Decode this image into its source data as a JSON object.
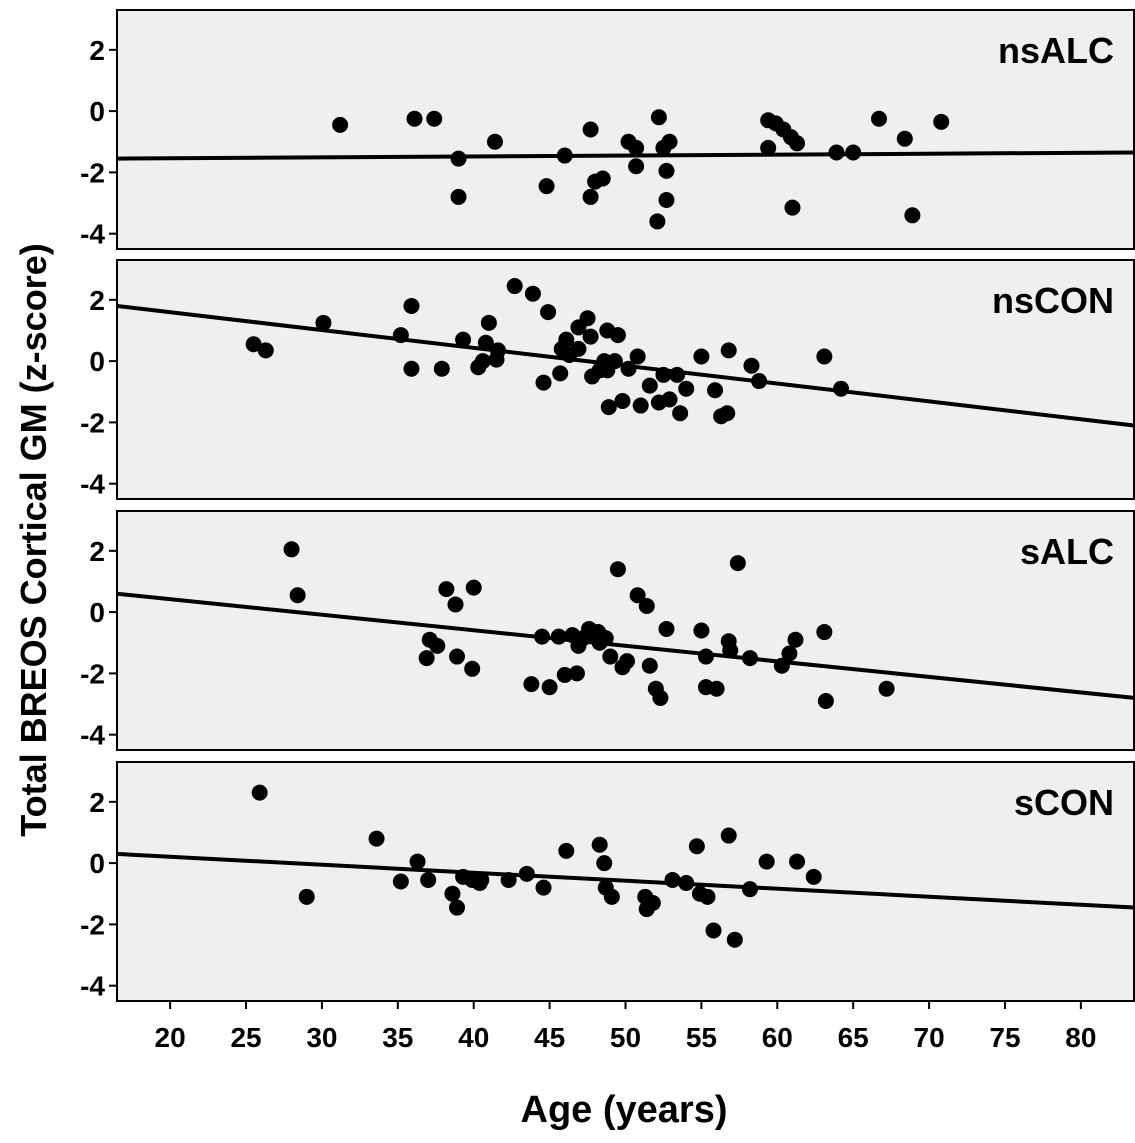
{
  "chart_data": {
    "type": "scatter",
    "xlabel": "Age (years)",
    "ylabel": "Total BREOS Cortical GM (z-score)",
    "xlim": [
      16.5,
      83.5
    ],
    "ylim": [
      -4.5,
      3.3
    ],
    "x_ticks": [
      20,
      25,
      30,
      35,
      40,
      45,
      50,
      55,
      60,
      65,
      70,
      75,
      80
    ],
    "y_ticks": [
      2,
      0,
      -2,
      -4
    ],
    "grid": false,
    "marker_color": "#000000",
    "panel_background": "#efefef",
    "panels": [
      {
        "label": "nsALC",
        "fit_line": [
          [
            16.5,
            -1.55
          ],
          [
            83.5,
            -1.35
          ]
        ],
        "points": [
          [
            31.2,
            -0.45
          ],
          [
            36.1,
            -0.25
          ],
          [
            37.4,
            -0.25
          ],
          [
            39.0,
            -1.55
          ],
          [
            39.0,
            -2.8
          ],
          [
            41.4,
            -1.0
          ],
          [
            44.8,
            -2.45
          ],
          [
            46.0,
            -1.45
          ],
          [
            47.7,
            -0.6
          ],
          [
            47.7,
            -2.8
          ],
          [
            48.0,
            -2.3
          ],
          [
            48.5,
            -2.2
          ],
          [
            50.2,
            -1.0
          ],
          [
            50.7,
            -1.2
          ],
          [
            50.7,
            -1.8
          ],
          [
            52.1,
            -3.6
          ],
          [
            52.2,
            -0.2
          ],
          [
            52.5,
            -1.2
          ],
          [
            52.7,
            -1.95
          ],
          [
            52.7,
            -2.9
          ],
          [
            52.9,
            -1.0
          ],
          [
            59.4,
            -0.3
          ],
          [
            59.4,
            -1.2
          ],
          [
            59.9,
            -0.4
          ],
          [
            60.4,
            -0.6
          ],
          [
            60.9,
            -0.85
          ],
          [
            61.3,
            -1.05
          ],
          [
            61.0,
            -3.15
          ],
          [
            63.9,
            -1.35
          ],
          [
            65.0,
            -1.35
          ],
          [
            66.7,
            -0.25
          ],
          [
            68.4,
            -0.9
          ],
          [
            68.9,
            -3.4
          ],
          [
            70.8,
            -0.35
          ]
        ]
      },
      {
        "label": "nsCON",
        "fit_line": [
          [
            16.5,
            1.8
          ],
          [
            83.5,
            -2.1
          ]
        ],
        "points": [
          [
            25.5,
            0.55
          ],
          [
            26.3,
            0.35
          ],
          [
            30.1,
            1.25
          ],
          [
            35.2,
            0.85
          ],
          [
            35.9,
            1.8
          ],
          [
            35.9,
            -0.25
          ],
          [
            37.9,
            -0.25
          ],
          [
            39.3,
            0.7
          ],
          [
            40.3,
            -0.2
          ],
          [
            40.6,
            0.0
          ],
          [
            40.8,
            0.6
          ],
          [
            41.0,
            1.25
          ],
          [
            41.6,
            0.35
          ],
          [
            41.5,
            0.05
          ],
          [
            42.7,
            2.45
          ],
          [
            43.9,
            2.2
          ],
          [
            44.6,
            -0.7
          ],
          [
            44.9,
            1.6
          ],
          [
            45.8,
            0.4
          ],
          [
            45.7,
            -0.4
          ],
          [
            46.1,
            0.7
          ],
          [
            46.3,
            0.2
          ],
          [
            46.9,
            1.1
          ],
          [
            46.9,
            0.4
          ],
          [
            47.5,
            1.4
          ],
          [
            47.7,
            0.8
          ],
          [
            47.8,
            -0.5
          ],
          [
            48.3,
            -0.3
          ],
          [
            48.6,
            0.0
          ],
          [
            48.8,
            -0.3
          ],
          [
            48.8,
            1.0
          ],
          [
            48.9,
            -1.5
          ],
          [
            49.3,
            0.0
          ],
          [
            49.5,
            0.85
          ],
          [
            49.8,
            -1.3
          ],
          [
            50.2,
            -0.25
          ],
          [
            50.8,
            0.15
          ],
          [
            51.0,
            -1.45
          ],
          [
            51.6,
            -0.8
          ],
          [
            52.2,
            -1.35
          ],
          [
            52.5,
            -0.45
          ],
          [
            52.9,
            -1.25
          ],
          [
            53.4,
            -0.45
          ],
          [
            53.6,
            -1.7
          ],
          [
            54.0,
            -0.9
          ],
          [
            55.0,
            0.15
          ],
          [
            55.9,
            -0.95
          ],
          [
            56.3,
            -1.8
          ],
          [
            56.7,
            -1.7
          ],
          [
            56.8,
            0.35
          ],
          [
            58.3,
            -0.15
          ],
          [
            58.8,
            -0.65
          ],
          [
            63.1,
            0.15
          ],
          [
            64.2,
            -0.9
          ]
        ]
      },
      {
        "label": "sALC",
        "fit_line": [
          [
            16.5,
            0.6
          ],
          [
            83.5,
            -2.8
          ]
        ],
        "points": [
          [
            28.0,
            2.05
          ],
          [
            28.4,
            0.55
          ],
          [
            36.9,
            -1.5
          ],
          [
            37.1,
            -0.9
          ],
          [
            37.6,
            -1.1
          ],
          [
            38.2,
            0.75
          ],
          [
            38.8,
            0.25
          ],
          [
            38.9,
            -1.45
          ],
          [
            39.9,
            -1.85
          ],
          [
            40.0,
            0.8
          ],
          [
            43.8,
            -2.35
          ],
          [
            44.5,
            -0.8
          ],
          [
            45.0,
            -2.45
          ],
          [
            45.6,
            -0.8
          ],
          [
            46.0,
            -2.05
          ],
          [
            46.5,
            -0.75
          ],
          [
            46.8,
            -2.0
          ],
          [
            46.9,
            -1.1
          ],
          [
            47.2,
            -0.85
          ],
          [
            47.6,
            -0.55
          ],
          [
            47.8,
            -0.75
          ],
          [
            48.2,
            -0.65
          ],
          [
            48.3,
            -1.0
          ],
          [
            48.7,
            -0.85
          ],
          [
            49.0,
            -1.45
          ],
          [
            49.5,
            1.4
          ],
          [
            49.8,
            -1.8
          ],
          [
            50.1,
            -1.6
          ],
          [
            50.8,
            0.55
          ],
          [
            51.4,
            0.2
          ],
          [
            51.6,
            -1.75
          ],
          [
            52.0,
            -2.5
          ],
          [
            52.3,
            -2.8
          ],
          [
            52.7,
            -0.55
          ],
          [
            55.0,
            -0.6
          ],
          [
            55.3,
            -1.45
          ],
          [
            55.3,
            -2.45
          ],
          [
            56.0,
            -2.5
          ],
          [
            56.8,
            -0.95
          ],
          [
            56.9,
            -1.25
          ],
          [
            57.4,
            1.6
          ],
          [
            58.2,
            -1.5
          ],
          [
            60.3,
            -1.75
          ],
          [
            60.8,
            -1.35
          ],
          [
            61.2,
            -0.9
          ],
          [
            63.1,
            -0.65
          ],
          [
            63.2,
            -2.9
          ],
          [
            67.2,
            -2.5
          ]
        ]
      },
      {
        "label": "sCON",
        "fit_line": [
          [
            16.5,
            0.3
          ],
          [
            83.5,
            -1.45
          ]
        ],
        "points": [
          [
            25.9,
            2.3
          ],
          [
            29.0,
            -1.1
          ],
          [
            33.6,
            0.8
          ],
          [
            35.2,
            -0.6
          ],
          [
            36.3,
            0.05
          ],
          [
            37.0,
            -0.55
          ],
          [
            38.6,
            -1.0
          ],
          [
            38.9,
            -1.45
          ],
          [
            39.3,
            -0.45
          ],
          [
            39.9,
            -0.55
          ],
          [
            40.4,
            -0.65
          ],
          [
            40.5,
            -0.55
          ],
          [
            42.3,
            -0.55
          ],
          [
            43.5,
            -0.35
          ],
          [
            44.6,
            -0.8
          ],
          [
            46.1,
            0.4
          ],
          [
            48.3,
            0.6
          ],
          [
            48.6,
            0.0
          ],
          [
            48.7,
            -0.8
          ],
          [
            49.1,
            -1.1
          ],
          [
            51.3,
            -1.1
          ],
          [
            51.4,
            -1.5
          ],
          [
            51.8,
            -1.3
          ],
          [
            53.1,
            -0.55
          ],
          [
            54.0,
            -0.65
          ],
          [
            54.7,
            0.55
          ],
          [
            54.9,
            -1.0
          ],
          [
            55.4,
            -1.1
          ],
          [
            55.8,
            -2.2
          ],
          [
            56.8,
            0.9
          ],
          [
            57.2,
            -2.5
          ],
          [
            58.2,
            -0.85
          ],
          [
            59.3,
            0.05
          ],
          [
            61.3,
            0.05
          ],
          [
            62.4,
            -0.45
          ]
        ]
      }
    ]
  }
}
